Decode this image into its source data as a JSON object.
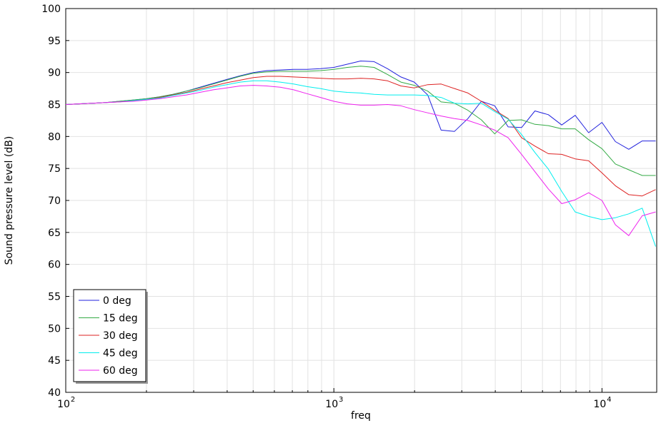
{
  "chart_data": {
    "type": "line",
    "xscale": "log",
    "xlabel": "freq",
    "ylabel": "Sound pressure level (dB)",
    "xlim": [
      100,
      16000
    ],
    "ylim": [
      40,
      100
    ],
    "grid": true,
    "legend_position": "bottom-left",
    "y_ticks": [
      "40",
      "45",
      "50",
      "55",
      "60",
      "65",
      "70",
      "75",
      "80",
      "85",
      "90",
      "95",
      "100"
    ],
    "x_ticks": [
      {
        "base": "10",
        "exp": "2",
        "value": 100
      },
      {
        "base": "10",
        "exp": "3",
        "value": 1000
      },
      {
        "base": "10",
        "exp": "4",
        "value": 10000
      }
    ],
    "x": [
      100,
      112,
      126,
      141,
      158,
      178,
      200,
      224,
      251,
      282,
      316,
      355,
      398,
      447,
      501,
      562,
      631,
      708,
      794,
      891,
      1000,
      1122,
      1259,
      1413,
      1585,
      1778,
      1995,
      2239,
      2512,
      2818,
      3162,
      3548,
      3981,
      4467,
      5012,
      5623,
      6310,
      7079,
      7943,
      8913,
      10000,
      11220,
      12589,
      14125,
      15849
    ],
    "series": [
      {
        "name": "0 deg",
        "color": "#2222dd",
        "values": [
          85,
          85.1,
          85.2,
          85.3,
          85.5,
          85.7,
          85.9,
          86.2,
          86.6,
          87.1,
          87.7,
          88.3,
          88.9,
          89.5,
          90,
          90.3,
          90.4,
          90.5,
          90.5,
          90.6,
          90.8,
          91.3,
          91.8,
          91.7,
          90.6,
          89.3,
          88.5,
          86.5,
          81,
          80.8,
          82.8,
          85.5,
          84.8,
          81.5,
          81.4,
          84,
          83.4,
          81.8,
          83.3,
          80.6,
          82.2,
          79.2,
          78,
          79.3,
          79.3
        ]
      },
      {
        "name": "15 deg",
        "color": "#33aa44",
        "values": [
          85,
          85.1,
          85.2,
          85.3,
          85.5,
          85.7,
          85.9,
          86.2,
          86.6,
          87.1,
          87.6,
          88.2,
          88.8,
          89.4,
          89.9,
          90.1,
          90.2,
          90.2,
          90.2,
          90.3,
          90.5,
          90.8,
          91,
          90.8,
          89.7,
          88.5,
          88,
          87.1,
          85.4,
          85.2,
          84.1,
          82.6,
          80.4,
          82.5,
          82.6,
          81.9,
          81.7,
          81.2,
          81.2,
          79.5,
          78.1,
          75.7,
          74.8,
          73.9,
          73.9
        ]
      },
      {
        "name": "30 deg",
        "color": "#dd2222",
        "values": [
          85,
          85.1,
          85.2,
          85.3,
          85.4,
          85.6,
          85.8,
          86.1,
          86.5,
          86.9,
          87.4,
          87.9,
          88.4,
          88.8,
          89.2,
          89.4,
          89.4,
          89.3,
          89.2,
          89.1,
          89,
          89,
          89.1,
          89,
          88.7,
          87.9,
          87.6,
          88.1,
          88.2,
          87.5,
          86.8,
          85.5,
          84.1,
          82.8,
          79.8,
          78.5,
          77.3,
          77.2,
          76.5,
          76.2,
          74.3,
          72.3,
          70.9,
          70.7,
          71.7
        ]
      },
      {
        "name": "45 deg",
        "color": "#00eeee",
        "values": [
          85,
          85.1,
          85.2,
          85.3,
          85.4,
          85.6,
          85.8,
          86,
          86.4,
          86.8,
          87.2,
          87.7,
          88.1,
          88.5,
          88.7,
          88.7,
          88.5,
          88.2,
          87.8,
          87.5,
          87.1,
          86.9,
          86.8,
          86.6,
          86.5,
          86.5,
          86.5,
          86.4,
          86.1,
          85.2,
          85.1,
          85.2,
          83.9,
          82.7,
          80.3,
          77.5,
          74.9,
          71.4,
          68.2,
          67.5,
          67,
          67.3,
          67.9,
          68.8,
          62.8
        ]
      },
      {
        "name": "60 deg",
        "color": "#ee22ee",
        "values": [
          85,
          85.1,
          85.2,
          85.3,
          85.4,
          85.5,
          85.7,
          85.9,
          86.2,
          86.5,
          86.9,
          87.3,
          87.6,
          87.9,
          88,
          87.9,
          87.7,
          87.3,
          86.7,
          86.1,
          85.5,
          85.1,
          84.9,
          84.9,
          85,
          84.8,
          84.2,
          83.7,
          83.2,
          82.8,
          82.5,
          81.8,
          81,
          79.8,
          77.2,
          74.5,
          71.8,
          69.5,
          70.1,
          71.2,
          70,
          66.2,
          64.5,
          67.6,
          68.2
        ]
      }
    ]
  }
}
